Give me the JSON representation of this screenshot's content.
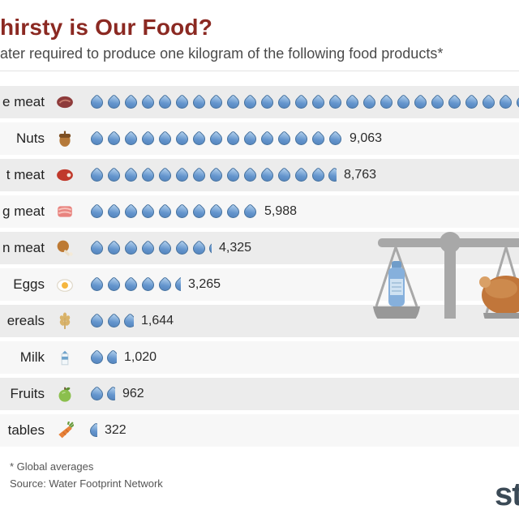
{
  "header": {
    "title": "hirsty is Our Food?",
    "subtitle": "ater required to produce one kilogram of the following food products*"
  },
  "colors": {
    "title_text": "#8b2922",
    "droplet_fill": "#6495cd",
    "droplet_border": "#44719f",
    "row_shade": "#ececec",
    "scale_gray": "#a8a8a8"
  },
  "rows": [
    {
      "label": "e meat",
      "icon": "bovine-meat-icon",
      "drops": 28,
      "value": ""
    },
    {
      "label": "Nuts",
      "icon": "nuts-icon",
      "drops": 15,
      "value": "9,063"
    },
    {
      "label": "t meat",
      "icon": "sheep-meat-icon",
      "drops": 14.6,
      "value": "8,763"
    },
    {
      "label": "g meat",
      "icon": "pig-meat-icon",
      "drops": 10,
      "value": "5,988"
    },
    {
      "label": "n meat",
      "icon": "chicken-meat-icon",
      "drops": 7.2,
      "value": "4,325"
    },
    {
      "label": "Eggs",
      "icon": "eggs-icon",
      "drops": 5.4,
      "value": "3,265"
    },
    {
      "label": "ereals",
      "icon": "cereals-icon",
      "drops": 2.7,
      "value": "1,644"
    },
    {
      "label": "Milk",
      "icon": "milk-icon",
      "drops": 1.7,
      "value": "1,020"
    },
    {
      "label": "Fruits",
      "icon": "fruits-icon",
      "drops": 1.6,
      "value": "962"
    },
    {
      "label": "tables",
      "icon": "vegetables-icon",
      "drops": 0.54,
      "value": "322"
    }
  ],
  "footer": {
    "note": "* Global averages",
    "source": "Source: Water Footprint Network",
    "logo_fragment": "st"
  },
  "chart_data": {
    "type": "bar",
    "title": "hirsty is Our Food?",
    "subtitle": "ater required to produce one kilogram of the following food products*",
    "unit": "liters of water per kilogram",
    "categories": [
      "e meat",
      "Nuts",
      "t meat",
      "g meat",
      "n meat",
      "Eggs",
      "ereals",
      "Milk",
      "Fruits",
      "tables"
    ],
    "values": [
      null,
      9063,
      8763,
      5988,
      4325,
      3265,
      1644,
      1020,
      962,
      322
    ],
    "value_labels": [
      "",
      "9,063",
      "8,763",
      "5,988",
      "4,325",
      "3,265",
      "1,644",
      "1,020",
      "962",
      "322"
    ],
    "pictogram_unit": "water droplet",
    "note": "* Global averages",
    "source": "Water Footprint Network",
    "legend_position": "none",
    "grid": false
  }
}
